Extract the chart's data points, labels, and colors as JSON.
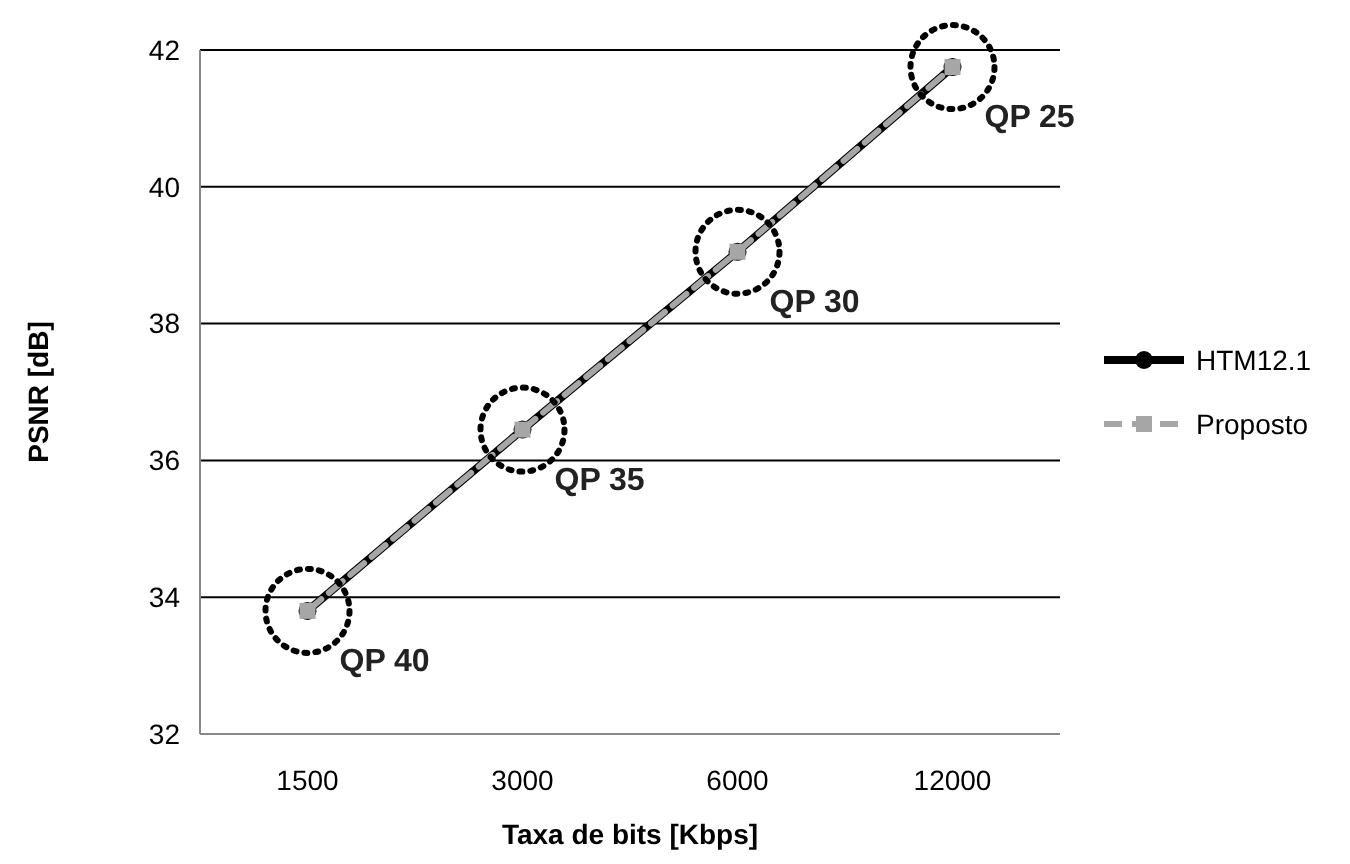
{
  "chart_data": {
    "type": "line",
    "xlabel": "Taxa de bits [Kbps]",
    "ylabel": "PSNR [dB]",
    "categories": [
      "1500",
      "3000",
      "6000",
      "12000"
    ],
    "series": [
      {
        "name": "HTM12.1",
        "color": "#000000",
        "values": [
          33.8,
          36.45,
          39.05,
          41.75
        ],
        "marker": "circle",
        "line_style": "solid"
      },
      {
        "name": "Proposto",
        "color": "#a6a6a6",
        "values": [
          33.8,
          36.45,
          39.05,
          41.75
        ],
        "marker": "square",
        "line_style": "dashed"
      }
    ],
    "ylim": [
      32,
      42
    ],
    "yticks": [
      32,
      34,
      36,
      38,
      40,
      42
    ],
    "grid": "y",
    "legend": "right",
    "annotations": [
      {
        "text": "QP 40",
        "x": "1500",
        "y": 33.8
      },
      {
        "text": "QP 35",
        "x": "3000",
        "y": 36.45
      },
      {
        "text": "QP 30",
        "x": "6000",
        "y": 39.05
      },
      {
        "text": "QP 25",
        "x": "12000",
        "y": 41.75
      }
    ]
  }
}
